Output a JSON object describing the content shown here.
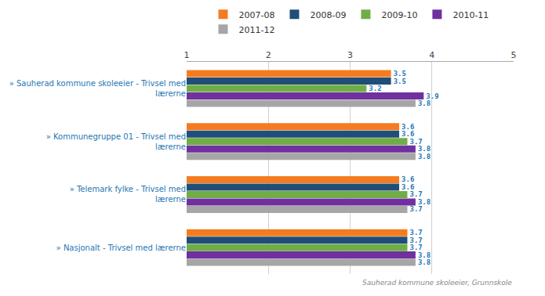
{
  "chart_data": {
    "type": "bar",
    "orientation": "horizontal",
    "categories": [
      "» Sauherad kommune skoleeier - Trivsel med\nlærerne",
      "» Kommunegruppe 01 - Trivsel med\nlærerne",
      "» Telemark fylke - Trivsel med\nlærerne",
      "» Nasjonalt - Trivsel med lærerne"
    ],
    "series": [
      {
        "name": "2007-08",
        "color": "#f47c20",
        "values": [
          3.5,
          3.6,
          3.6,
          3.7
        ]
      },
      {
        "name": "2008-09",
        "color": "#1f4e79",
        "values": [
          3.5,
          3.6,
          3.6,
          3.7
        ]
      },
      {
        "name": "2009-10",
        "color": "#70ad47",
        "values": [
          3.2,
          3.7,
          3.7,
          3.7
        ]
      },
      {
        "name": "2010-11",
        "color": "#7030a0",
        "values": [
          3.9,
          3.8,
          3.8,
          3.8
        ]
      },
      {
        "name": "2011-12",
        "color": "#a6a6a6",
        "values": [
          3.8,
          3.8,
          3.7,
          3.8
        ]
      }
    ],
    "xlim": [
      1,
      5
    ],
    "xticks": [
      1,
      2,
      3,
      4,
      5
    ],
    "grid": true,
    "legend": "top",
    "data_labels": true,
    "annotations": [
      "Sauherad kommune skoleeier, Grunnskole"
    ]
  }
}
